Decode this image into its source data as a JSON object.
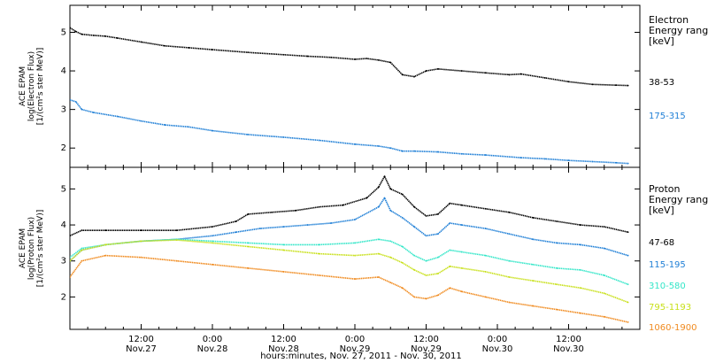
{
  "chart_data": [
    {
      "type": "line",
      "ylabel_lines": [
        "ACE EPAM",
        "log(Electron Flux)",
        "[1/(cm²s ster MeV)]"
      ],
      "ylim": [
        1.5,
        5.7
      ],
      "yticks": [
        2,
        3,
        4,
        5
      ],
      "x_range_hours": [
        0,
        96
      ],
      "legend": {
        "title_lines": [
          "Electron",
          "Energy range",
          "[keV]"
        ]
      },
      "series": [
        {
          "name": "38-53",
          "color": "#000000",
          "x": [
            0,
            1,
            2,
            4,
            6,
            8,
            12,
            16,
            20,
            24,
            30,
            36,
            40,
            44,
            48,
            50,
            52,
            54,
            56,
            58,
            60,
            62,
            66,
            70,
            74,
            76,
            80,
            84,
            88,
            92,
            94
          ],
          "y": [
            5.12,
            5.02,
            4.95,
            4.92,
            4.9,
            4.85,
            4.75,
            4.65,
            4.6,
            4.55,
            4.48,
            4.42,
            4.38,
            4.35,
            4.3,
            4.32,
            4.28,
            4.22,
            3.9,
            3.85,
            4.0,
            4.05,
            4.0,
            3.95,
            3.9,
            3.92,
            3.82,
            3.72,
            3.65,
            3.63,
            3.62
          ]
        },
        {
          "name": "175-315",
          "color": "#1f7fd6",
          "x": [
            0,
            1,
            2,
            4,
            8,
            12,
            16,
            20,
            24,
            30,
            36,
            42,
            48,
            52,
            54,
            56,
            58,
            62,
            66,
            70,
            76,
            80,
            84,
            88,
            92,
            94
          ],
          "y": [
            3.25,
            3.2,
            3.0,
            2.92,
            2.82,
            2.7,
            2.6,
            2.55,
            2.45,
            2.35,
            2.28,
            2.2,
            2.1,
            2.05,
            2.0,
            1.92,
            1.92,
            1.9,
            1.85,
            1.82,
            1.75,
            1.72,
            1.68,
            1.65,
            1.62,
            1.6
          ]
        }
      ]
    },
    {
      "type": "line",
      "ylabel_lines": [
        "ACE EPAM",
        "log(Proton Flux)",
        "[1/(cm²s ster MeV)]"
      ],
      "ylim": [
        1.1,
        5.6
      ],
      "yticks": [
        2,
        3,
        4,
        5
      ],
      "x_range_hours": [
        0,
        96
      ],
      "legend": {
        "title_lines": [
          "Proton",
          "Energy range",
          "[keV]"
        ]
      },
      "series": [
        {
          "name": "47-68",
          "color": "#000000",
          "x": [
            0,
            2,
            6,
            12,
            18,
            24,
            28,
            30,
            34,
            38,
            42,
            46,
            50,
            52,
            53,
            54,
            56,
            58,
            60,
            62,
            64,
            66,
            70,
            74,
            78,
            82,
            86,
            90,
            94
          ],
          "y": [
            3.7,
            3.85,
            3.85,
            3.85,
            3.85,
            3.95,
            4.1,
            4.3,
            4.35,
            4.4,
            4.5,
            4.55,
            4.75,
            5.05,
            5.35,
            5.0,
            4.85,
            4.5,
            4.25,
            4.3,
            4.6,
            4.55,
            4.45,
            4.35,
            4.2,
            4.1,
            4.0,
            3.95,
            3.8
          ]
        },
        {
          "name": "115-195",
          "color": "#1f7fd6",
          "x": [
            0,
            2,
            6,
            12,
            18,
            24,
            28,
            32,
            36,
            40,
            44,
            48,
            52,
            53,
            54,
            56,
            58,
            60,
            62,
            64,
            66,
            70,
            74,
            78,
            82,
            86,
            90,
            94
          ],
          "y": [
            3.0,
            3.3,
            3.45,
            3.55,
            3.6,
            3.7,
            3.8,
            3.9,
            3.95,
            4.0,
            4.05,
            4.15,
            4.5,
            4.75,
            4.4,
            4.2,
            3.95,
            3.7,
            3.75,
            4.05,
            4.0,
            3.9,
            3.75,
            3.6,
            3.5,
            3.45,
            3.35,
            3.15
          ]
        },
        {
          "name": "310-580",
          "color": "#33e6c8",
          "x": [
            0,
            2,
            6,
            12,
            18,
            24,
            30,
            36,
            42,
            48,
            52,
            54,
            56,
            58,
            60,
            62,
            64,
            66,
            70,
            74,
            78,
            82,
            86,
            90,
            94
          ],
          "y": [
            3.1,
            3.35,
            3.45,
            3.55,
            3.6,
            3.55,
            3.5,
            3.45,
            3.45,
            3.5,
            3.6,
            3.55,
            3.4,
            3.15,
            3.0,
            3.1,
            3.3,
            3.25,
            3.15,
            3.0,
            2.9,
            2.8,
            2.75,
            2.6,
            2.35
          ]
        },
        {
          "name": "795-1193",
          "color": "#c8e01a",
          "x": [
            0,
            2,
            6,
            12,
            18,
            24,
            30,
            36,
            42,
            48,
            52,
            54,
            56,
            58,
            60,
            62,
            64,
            66,
            70,
            74,
            78,
            82,
            86,
            90,
            94
          ],
          "y": [
            3.0,
            3.3,
            3.45,
            3.55,
            3.58,
            3.5,
            3.4,
            3.3,
            3.2,
            3.15,
            3.2,
            3.1,
            2.95,
            2.75,
            2.6,
            2.65,
            2.85,
            2.8,
            2.7,
            2.55,
            2.45,
            2.35,
            2.25,
            2.1,
            1.85
          ]
        },
        {
          "name": "1060-1900",
          "color": "#f08a1e",
          "x": [
            0,
            2,
            6,
            12,
            18,
            24,
            30,
            36,
            42,
            48,
            52,
            54,
            56,
            58,
            60,
            62,
            64,
            66,
            70,
            74,
            78,
            82,
            86,
            90,
            94
          ],
          "y": [
            2.55,
            3.0,
            3.15,
            3.1,
            3.0,
            2.9,
            2.8,
            2.7,
            2.6,
            2.5,
            2.55,
            2.4,
            2.25,
            2.0,
            1.95,
            2.05,
            2.25,
            2.15,
            2.0,
            1.85,
            1.75,
            1.65,
            1.55,
            1.45,
            1.3
          ]
        }
      ]
    }
  ],
  "x_axis": {
    "tick_labels": [
      {
        "hours": 12,
        "time": "12:00",
        "date": "Nov.27"
      },
      {
        "hours": 24,
        "time": "0:00",
        "date": "Nov.28"
      },
      {
        "hours": 36,
        "time": "12:00",
        "date": "Nov.28"
      },
      {
        "hours": 48,
        "time": "0:00",
        "date": "Nov.29"
      },
      {
        "hours": 60,
        "time": "12:00",
        "date": "Nov.29"
      },
      {
        "hours": 72,
        "time": "0:00",
        "date": "Nov.30"
      },
      {
        "hours": 84,
        "time": "12:00",
        "date": "Nov.30"
      }
    ],
    "label": "hours:minutes, Nov. 27, 2011 - Nov. 30, 2011"
  }
}
